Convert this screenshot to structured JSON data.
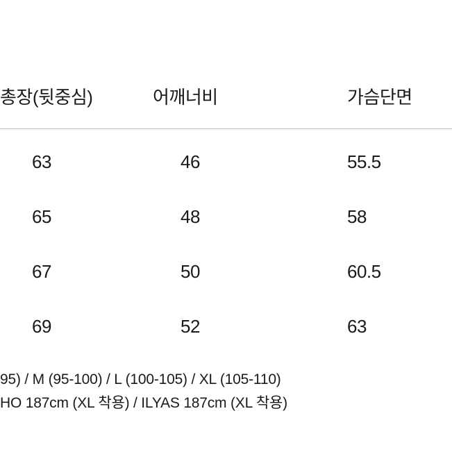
{
  "size_table": {
    "type": "table",
    "background_color": "#ffffff",
    "border_color": "#c0c0c0",
    "header_fontsize": 26,
    "cell_fontsize": 26,
    "text_color": "#1a1a1a",
    "columns": [
      {
        "label": "총장(뒷중심)"
      },
      {
        "label": "어깨너비"
      },
      {
        "label": "가슴단면"
      }
    ],
    "rows": [
      [
        "63",
        "46",
        "55.5"
      ],
      [
        "65",
        "48",
        "58"
      ],
      [
        "67",
        "50",
        "60.5"
      ],
      [
        "69",
        "52",
        "63"
      ]
    ]
  },
  "footer": {
    "line1": "95) / M (95-100) / L (100-105) / XL (105-110)",
    "line2": "HO 187cm (XL 착용) / ILYAS 187cm (XL 착용)",
    "fontsize": 21,
    "text_color": "#1a1a1a"
  }
}
